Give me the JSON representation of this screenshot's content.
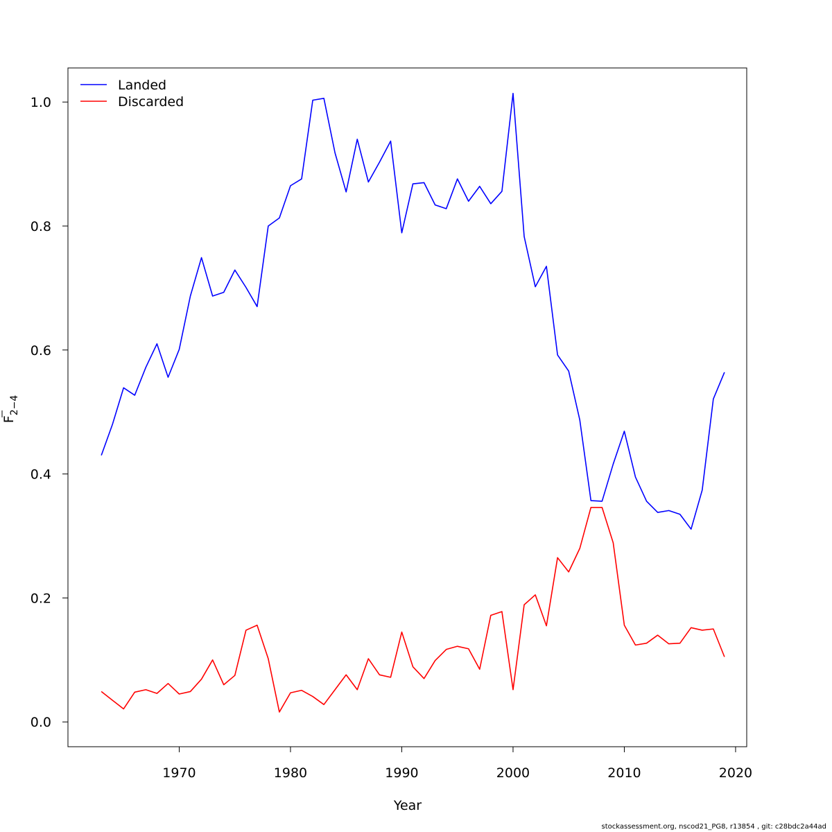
{
  "chart_data": {
    "type": "line",
    "xlabel": "Year",
    "ylabel": {
      "base": "F",
      "subscript": "2−4"
    },
    "xlim": [
      1960,
      2021
    ],
    "ylim": [
      -0.04,
      1.055
    ],
    "x_ticks": [
      1970,
      1980,
      1990,
      2000,
      2010,
      2020
    ],
    "y_ticks": [
      0.0,
      0.2,
      0.4,
      0.6,
      0.8,
      1.0
    ],
    "y_tick_labels": [
      "0.0",
      "0.2",
      "0.4",
      "0.6",
      "0.8",
      "1.0"
    ],
    "grid": false,
    "legend_position": "top-left",
    "x": [
      1963,
      1964,
      1965,
      1966,
      1967,
      1968,
      1969,
      1970,
      1971,
      1972,
      1973,
      1974,
      1975,
      1976,
      1977,
      1978,
      1979,
      1980,
      1981,
      1982,
      1983,
      1984,
      1985,
      1986,
      1987,
      1988,
      1989,
      1990,
      1991,
      1992,
      1993,
      1994,
      1995,
      1996,
      1997,
      1998,
      1999,
      2000,
      2001,
      2002,
      2003,
      2004,
      2005,
      2006,
      2007,
      2008,
      2009,
      2010,
      2011,
      2012,
      2013,
      2014,
      2015,
      2016,
      2017,
      2018,
      2019
    ],
    "series": [
      {
        "name": "Landed",
        "color": "#0000ff",
        "values": [
          0.43,
          0.48,
          0.539,
          0.527,
          0.572,
          0.61,
          0.556,
          0.601,
          0.687,
          0.749,
          0.687,
          0.693,
          0.729,
          0.701,
          0.67,
          0.8,
          0.813,
          0.865,
          0.876,
          1.003,
          1.006,
          0.918,
          0.855,
          0.94,
          0.871,
          0.903,
          0.937,
          0.789,
          0.868,
          0.87,
          0.834,
          0.828,
          0.876,
          0.84,
          0.864,
          0.836,
          0.856,
          1.014,
          0.783,
          0.702,
          0.735,
          0.592,
          0.566,
          0.487,
          0.357,
          0.356,
          0.416,
          0.469,
          0.395,
          0.356,
          0.338,
          0.341,
          0.335,
          0.311,
          0.374,
          0.521,
          0.564
        ]
      },
      {
        "name": "Discarded",
        "color": "#ff0000",
        "values": [
          0.049,
          0.035,
          0.021,
          0.048,
          0.052,
          0.046,
          0.062,
          0.045,
          0.049,
          0.069,
          0.1,
          0.06,
          0.075,
          0.148,
          0.156,
          0.102,
          0.016,
          0.047,
          0.051,
          0.041,
          0.028,
          0.052,
          0.076,
          0.052,
          0.102,
          0.076,
          0.072,
          0.145,
          0.089,
          0.07,
          0.099,
          0.117,
          0.122,
          0.118,
          0.085,
          0.172,
          0.178,
          0.052,
          0.189,
          0.205,
          0.155,
          0.265,
          0.242,
          0.28,
          0.346,
          0.346,
          0.289,
          0.156,
          0.124,
          0.127,
          0.14,
          0.126,
          0.127,
          0.152,
          0.148,
          0.15,
          0.105
        ]
      }
    ]
  },
  "footer": "stockassessment.org, nscod21_PG8, r13854 , git: c28bdc2a44ad"
}
